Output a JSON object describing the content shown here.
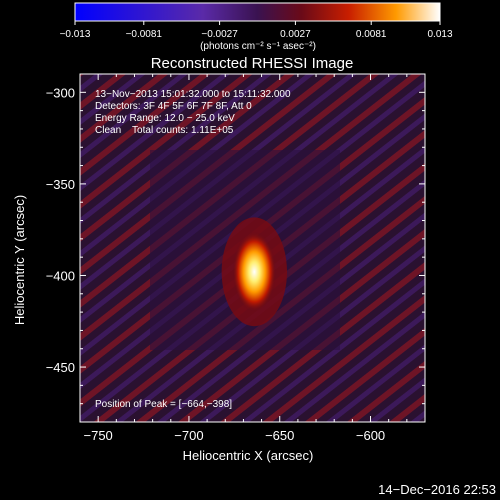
{
  "chart_data": {
    "type": "heatmap",
    "title": "Reconstructed RHESSI Image",
    "xlabel": "Heliocentric X (arcsec)",
    "ylabel": "Heliocentric Y (arcsec)",
    "xlim": [
      -760,
      -570
    ],
    "ylim": [
      -480,
      -290
    ],
    "x_ticks": [
      -750,
      -700,
      -650,
      -600
    ],
    "x_tick_labels": [
      "−750",
      "−700",
      "−650",
      "−600"
    ],
    "y_ticks": [
      -300,
      -350,
      -400,
      -450
    ],
    "y_tick_labels": [
      "−300",
      "−350",
      "−400",
      "−450"
    ],
    "colorbar": {
      "min": -0.013,
      "max": 0.013,
      "ticks": [
        -0.013,
        -0.0081,
        -0.0027,
        0.0027,
        0.0081,
        0.013
      ],
      "tick_labels": [
        "−0.013",
        "−0.0081",
        "−0.0027",
        "0.0027",
        "0.0081",
        "0.013"
      ],
      "units": "(photons cm⁻² s⁻¹ asec⁻²)"
    },
    "annotations": [
      "13−Nov−2013 15:01:32.000 to 15:11:32.000",
      "Detectors: 3F 4F 5F 6F 7F 8F, Att 0",
      "Energy Range: 12.0 − 25.0 keV",
      "Clean    Total counts: 1.11E+05"
    ],
    "peak_label": "Position of Peak = [−664,−398]",
    "source": {
      "x": -664,
      "y": -398,
      "sigma_x": 6,
      "sigma_y": 11,
      "peak_value": 0.013
    },
    "grid": false
  },
  "footer_timestamp": "14−Dec−2016 22:53"
}
